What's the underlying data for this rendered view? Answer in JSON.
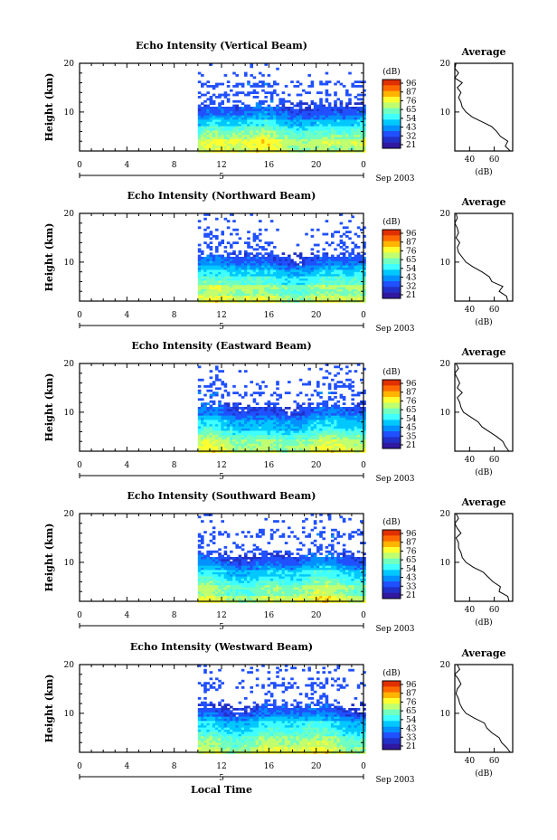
{
  "figure": {
    "x_axis_label": "Local Time",
    "date_label": "Sep 2003",
    "day_marker": "5"
  },
  "colorbar": {
    "unit_label": "(dB)",
    "colors": [
      "#e03000",
      "#ff6a00",
      "#ffb400",
      "#ffff30",
      "#c0ff70",
      "#70ffc0",
      "#40ffff",
      "#00c8ff",
      "#0090ff",
      "#2050ff",
      "#2030c8",
      "#3018a0"
    ]
  },
  "chart_data": [
    {
      "type": "heatmap",
      "title": "Echo Intensity (Vertical Beam)",
      "xlabel": "",
      "ylabel": "Height (km)",
      "xlim": [
        0,
        24
      ],
      "ylim": [
        2,
        20
      ],
      "x_ticks": [
        "0",
        "4",
        "8",
        "12",
        "16",
        "20",
        "0"
      ],
      "y_ticks": [
        "20",
        "10"
      ],
      "data_start_hour": 10,
      "colorbar_ticks": [
        "96",
        "87",
        "76",
        "65",
        "54",
        "43",
        "32",
        "21"
      ],
      "average_profile": {
        "title": "Average",
        "xlabel": "(dB)",
        "x_ticks": [
          "40",
          "60"
        ],
        "y_ticks": [
          "20",
          "10"
        ],
        "height_km": [
          2,
          3,
          4,
          5,
          6,
          7,
          8,
          9,
          10,
          11,
          12,
          13,
          14,
          15,
          16,
          17,
          18,
          19,
          20
        ],
        "intensity_db": [
          73,
          69,
          71,
          65,
          62,
          58,
          50,
          42,
          37,
          34,
          33,
          31,
          33,
          30,
          34,
          28,
          31,
          28,
          29
        ]
      }
    },
    {
      "type": "heatmap",
      "title": "Echo Intensity (Northward Beam)",
      "xlabel": "",
      "ylabel": "Height (km)",
      "xlim": [
        0,
        24
      ],
      "ylim": [
        2,
        20
      ],
      "x_ticks": [
        "0",
        "4",
        "8",
        "12",
        "16",
        "20",
        "0"
      ],
      "y_ticks": [
        "20",
        "10"
      ],
      "data_start_hour": 10,
      "colorbar_ticks": [
        "96",
        "87",
        "76",
        "65",
        "54",
        "43",
        "32",
        "21"
      ],
      "average_profile": {
        "title": "Average",
        "xlabel": "(dB)",
        "x_ticks": [
          "40",
          "60"
        ],
        "y_ticks": [
          "20",
          "10"
        ],
        "height_km": [
          2,
          3,
          4,
          5,
          6,
          7,
          8,
          9,
          10,
          11,
          12,
          13,
          14,
          15,
          16,
          17,
          18,
          19,
          20
        ],
        "intensity_db": [
          71,
          70,
          64,
          67,
          58,
          56,
          50,
          43,
          37,
          34,
          31,
          30,
          32,
          29,
          31,
          30,
          28,
          30,
          29
        ]
      }
    },
    {
      "type": "heatmap",
      "title": "Echo Intensity (Eastward Beam)",
      "xlabel": "",
      "ylabel": "Height (km)",
      "xlim": [
        0,
        24
      ],
      "ylim": [
        2,
        20
      ],
      "x_ticks": [
        "0",
        "4",
        "8",
        "12",
        "16",
        "20",
        "0"
      ],
      "y_ticks": [
        "20",
        "10"
      ],
      "data_start_hour": 10,
      "colorbar_ticks": [
        "96",
        "87",
        "76",
        "65",
        "54",
        "45",
        "35",
        "21"
      ],
      "average_profile": {
        "title": "Average",
        "xlabel": "(dB)",
        "x_ticks": [
          "40",
          "60"
        ],
        "y_ticks": [
          "20",
          "10"
        ],
        "height_km": [
          2,
          3,
          4,
          5,
          6,
          7,
          8,
          9,
          10,
          11,
          12,
          13,
          14,
          15,
          16,
          17,
          18,
          19,
          20
        ],
        "intensity_db": [
          72,
          69,
          67,
          62,
          56,
          50,
          47,
          41,
          35,
          33,
          32,
          30,
          34,
          30,
          32,
          30,
          28,
          31,
          29
        ]
      }
    },
    {
      "type": "heatmap",
      "title": "Echo Intensity (Southward Beam)",
      "xlabel": "",
      "ylabel": "Height (km)",
      "xlim": [
        0,
        24
      ],
      "ylim": [
        2,
        20
      ],
      "x_ticks": [
        "0",
        "4",
        "8",
        "12",
        "16",
        "20",
        "0"
      ],
      "y_ticks": [
        "20",
        "10"
      ],
      "data_start_hour": 10,
      "colorbar_ticks": [
        "96",
        "87",
        "76",
        "65",
        "54",
        "43",
        "33",
        "21"
      ],
      "average_profile": {
        "title": "Average",
        "xlabel": "(dB)",
        "x_ticks": [
          "40",
          "60"
        ],
        "y_ticks": [
          "20",
          "10"
        ],
        "height_km": [
          2,
          3,
          4,
          5,
          6,
          7,
          8,
          9,
          10,
          11,
          12,
          13,
          14,
          15,
          16,
          17,
          18,
          19,
          20
        ],
        "intensity_db": [
          72,
          71,
          64,
          65,
          59,
          55,
          51,
          43,
          37,
          34,
          33,
          31,
          31,
          29,
          33,
          30,
          28,
          31,
          29
        ]
      }
    },
    {
      "type": "heatmap",
      "title": "Echo Intensity (Westward Beam)",
      "xlabel": "",
      "ylabel": "Height (km)",
      "xlim": [
        0,
        24
      ],
      "ylim": [
        2,
        20
      ],
      "x_ticks": [
        "0",
        "4",
        "8",
        "12",
        "16",
        "20",
        "0"
      ],
      "y_ticks": [
        "20",
        "10"
      ],
      "data_start_hour": 10,
      "colorbar_ticks": [
        "96",
        "87",
        "76",
        "65",
        "54",
        "43",
        "33",
        "21"
      ],
      "average_profile": {
        "title": "Average",
        "xlabel": "(dB)",
        "x_ticks": [
          "40",
          "60"
        ],
        "y_ticks": [
          "20",
          "10"
        ],
        "height_km": [
          2,
          3,
          4,
          5,
          6,
          7,
          8,
          9,
          10,
          11,
          12,
          13,
          14,
          15,
          16,
          17,
          18,
          19,
          20
        ],
        "intensity_db": [
          73,
          70,
          66,
          64,
          58,
          54,
          52,
          44,
          37,
          34,
          32,
          31,
          29,
          30,
          33,
          31,
          28,
          32,
          30
        ]
      }
    }
  ]
}
